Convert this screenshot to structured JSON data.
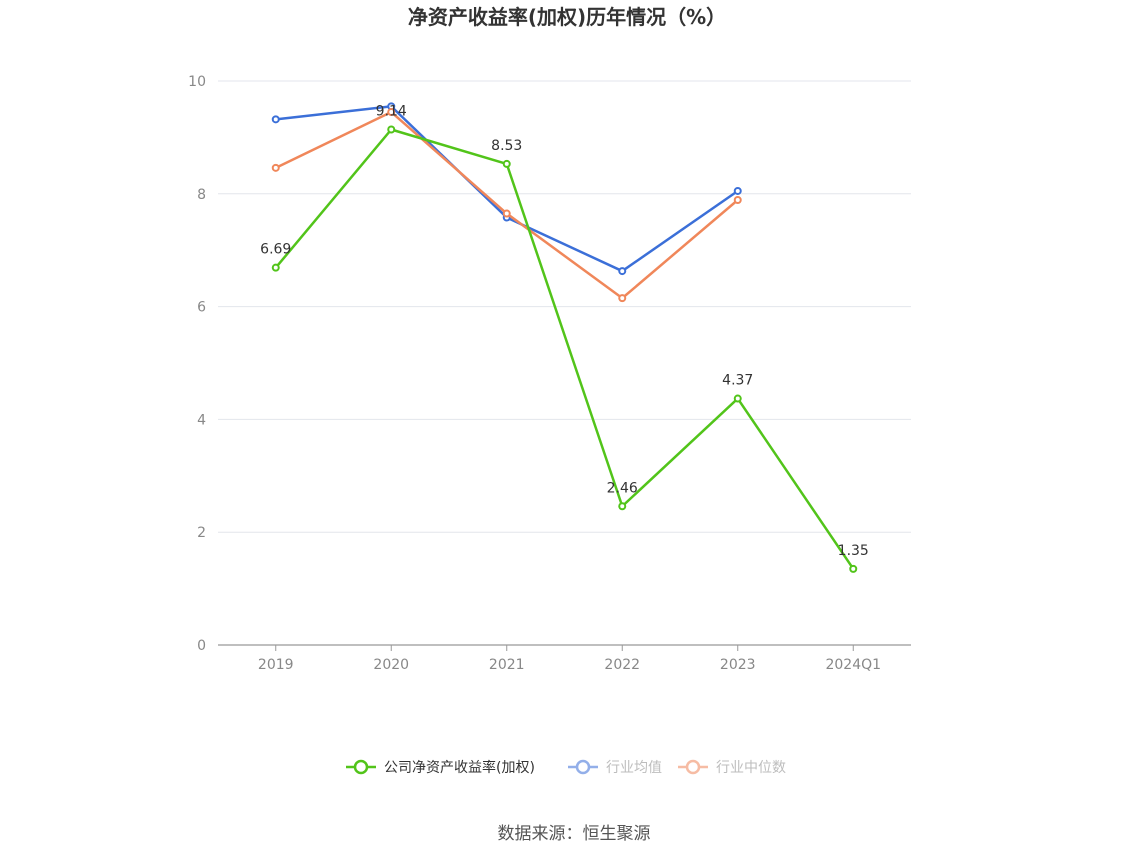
{
  "chart_data": {
    "type": "line",
    "title": "净资产收益率(加权)历年情况（%）",
    "categories": [
      "2019",
      "2020",
      "2021",
      "2022",
      "2023",
      "2024Q1"
    ],
    "ylim": [
      0,
      10
    ],
    "yticks": [
      0,
      2,
      4,
      6,
      8,
      10
    ],
    "grid": true,
    "legend_position": "bottom",
    "series": [
      {
        "name": "公司净资产收益率(加权)",
        "color": "#52c41a",
        "values": [
          6.69,
          9.14,
          8.53,
          2.46,
          4.37,
          1.35
        ],
        "labels": [
          "6.69",
          "9.14",
          "8.53",
          "2.46",
          "4.37",
          "1.35"
        ],
        "active": true
      },
      {
        "name": "行业均值",
        "color": "#3b6fd8",
        "values": [
          9.32,
          9.55,
          7.58,
          6.63,
          8.05,
          null
        ],
        "active": false
      },
      {
        "name": "行业中位数",
        "color": "#f0875a",
        "values": [
          8.46,
          9.45,
          7.65,
          6.15,
          7.89,
          null
        ],
        "active": false
      }
    ],
    "source": "数据来源：恒生聚源"
  }
}
